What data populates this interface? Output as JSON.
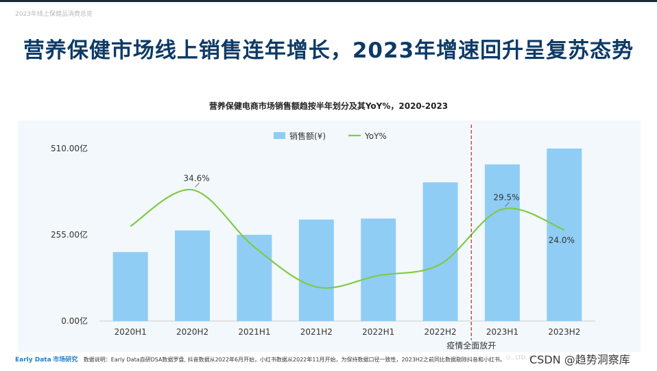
{
  "header": {
    "breadcrumb": "2023年线上保健品消费总览",
    "headline": "营养保健市场线上销售连年增长，2023年增速回升呈复苏态势"
  },
  "chart_data": {
    "type": "bar+line",
    "title": "营养保健电商市场销售额趋按半年划分及其YoY%，2020-2023",
    "categories": [
      "2020H1",
      "2020H2",
      "2021H1",
      "2021H2",
      "2022H1",
      "2022H2",
      "2023H1",
      "2023H2"
    ],
    "series": [
      {
        "name": "销售额(¥)",
        "kind": "bar",
        "color": "#8fcdf5",
        "values": [
          204,
          268,
          255,
          300,
          303,
          410,
          463,
          510
        ]
      },
      {
        "name": "YoY%",
        "kind": "line",
        "color": "#7ecb45",
        "values": [
          25.0,
          34.6,
          19.5,
          9.0,
          12.0,
          15.0,
          29.5,
          24.0
        ],
        "labels": [
          {
            "index": 1,
            "text": "34.6%"
          },
          {
            "index": 6,
            "text": "29.5%"
          },
          {
            "index": 7,
            "text": "24.0%"
          }
        ],
        "ylim": [
          0,
          50
        ]
      }
    ],
    "y_ticks": [
      {
        "value": 0,
        "label": "0.00亿"
      },
      {
        "value": 255,
        "label": "255.00亿"
      },
      {
        "value": 510,
        "label": "510.00亿"
      }
    ],
    "ylim": [
      0,
      510
    ],
    "annotation": {
      "label": "疫情全面放开",
      "after_index": 5,
      "color": "#c0392b"
    },
    "legend_position": "top-center"
  },
  "footer": {
    "brand_en": "Early Data",
    "brand_cn": "市场研究",
    "note": "数据说明：Early Data自研DSA数据罗盘, 抖音数据从2022年6月开始，小红书数据从2022年11月开始，为保持数据口径一致性，2023H2之前同比数据剔除抖音和小红书。",
    "copyright": "O., LTD. All Rig",
    "watermark": "CSDN @趋势洞察库"
  }
}
